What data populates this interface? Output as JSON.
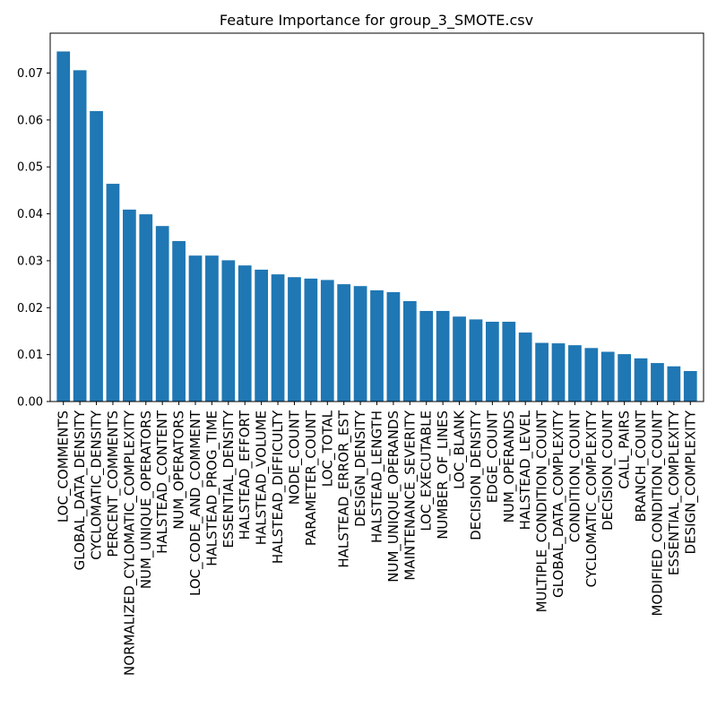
{
  "chart_data": {
    "type": "bar",
    "title": "Feature Importance for group_3_SMOTE.csv",
    "xlabel": "",
    "ylabel": "",
    "ylim": [
      0,
      0.0785
    ],
    "yticks": [
      "0.00",
      "0.01",
      "0.02",
      "0.03",
      "0.04",
      "0.05",
      "0.06",
      "0.07"
    ],
    "bar_color": "#1f77b4",
    "grid": false,
    "categories": [
      "LOC_COMMENTS",
      "GLOBAL_DATA_DENSITY",
      "CYCLOMATIC_DENSITY",
      "PERCENT_COMMENTS",
      "NORMALIZED_CYLOMATIC_COMPLEXITY",
      "NUM_UNIQUE_OPERATORS",
      "HALSTEAD_CONTENT",
      "NUM_OPERATORS",
      "LOC_CODE_AND_COMMENT",
      "HALSTEAD_PROG_TIME",
      "ESSENTIAL_DENSITY",
      "HALSTEAD_EFFORT",
      "HALSTEAD_VOLUME",
      "HALSTEAD_DIFFICULTY",
      "NODE_COUNT",
      "PARAMETER_COUNT",
      "LOC_TOTAL",
      "HALSTEAD_ERROR_EST",
      "DESIGN_DENSITY",
      "HALSTEAD_LENGTH",
      "NUM_UNIQUE_OPERANDS",
      "MAINTENANCE_SEVERITY",
      "LOC_EXECUTABLE",
      "NUMBER_OF_LINES",
      "LOC_BLANK",
      "DECISION_DENSITY",
      "EDGE_COUNT",
      "NUM_OPERANDS",
      "HALSTEAD_LEVEL",
      "MULTIPLE_CONDITION_COUNT",
      "GLOBAL_DATA_COMPLEXITY",
      "CONDITION_COUNT",
      "CYCLOMATIC_COMPLEXITY",
      "DECISION_COUNT",
      "CALL_PAIRS",
      "BRANCH_COUNT",
      "MODIFIED_CONDITION_COUNT",
      "ESSENTIAL_COMPLEXITY",
      "DESIGN_COMPLEXITY"
    ],
    "values": [
      0.0746,
      0.0706,
      0.0619,
      0.0464,
      0.0409,
      0.0399,
      0.0374,
      0.0342,
      0.0311,
      0.0311,
      0.0301,
      0.029,
      0.0281,
      0.0271,
      0.0265,
      0.0262,
      0.0259,
      0.025,
      0.0246,
      0.0237,
      0.0233,
      0.0214,
      0.0193,
      0.0193,
      0.0181,
      0.0175,
      0.017,
      0.017,
      0.0147,
      0.0125,
      0.0124,
      0.012,
      0.0114,
      0.0106,
      0.0101,
      0.0092,
      0.0082,
      0.0075,
      0.0065
    ]
  }
}
